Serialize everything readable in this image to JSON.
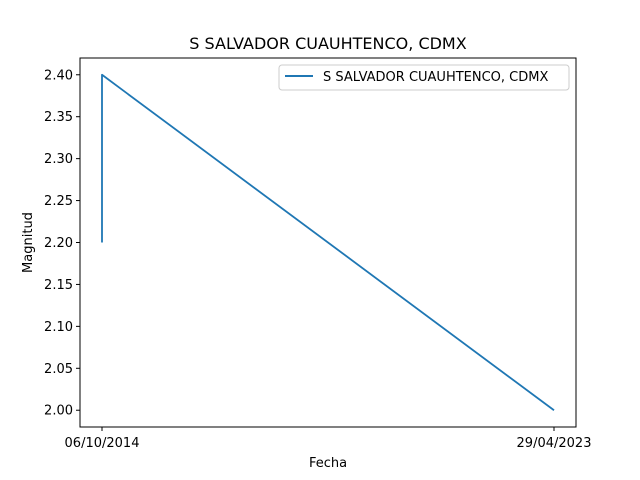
{
  "chart_data": {
    "type": "line",
    "title": "S SALVADOR CUAUHTENCO, CDMX",
    "xlabel": "Fecha",
    "ylabel": "Magnitud",
    "x_ticks": [
      "06/10/2014",
      "29/04/2023"
    ],
    "y_ticks": [
      "2.00",
      "2.05",
      "2.10",
      "2.15",
      "2.20",
      "2.25",
      "2.30",
      "2.35",
      "2.40"
    ],
    "ylim": [
      1.98,
      2.42
    ],
    "legend_position": "top-right",
    "grid": false,
    "series": [
      {
        "name": "S SALVADOR CUAUHTENCO, CDMX",
        "color": "#1f77b4",
        "points": [
          {
            "x": "06/10/2014",
            "y": 2.2
          },
          {
            "x": "06/10/2014",
            "y": 2.4
          },
          {
            "x": "29/04/2023",
            "y": 2.0
          }
        ]
      }
    ]
  }
}
